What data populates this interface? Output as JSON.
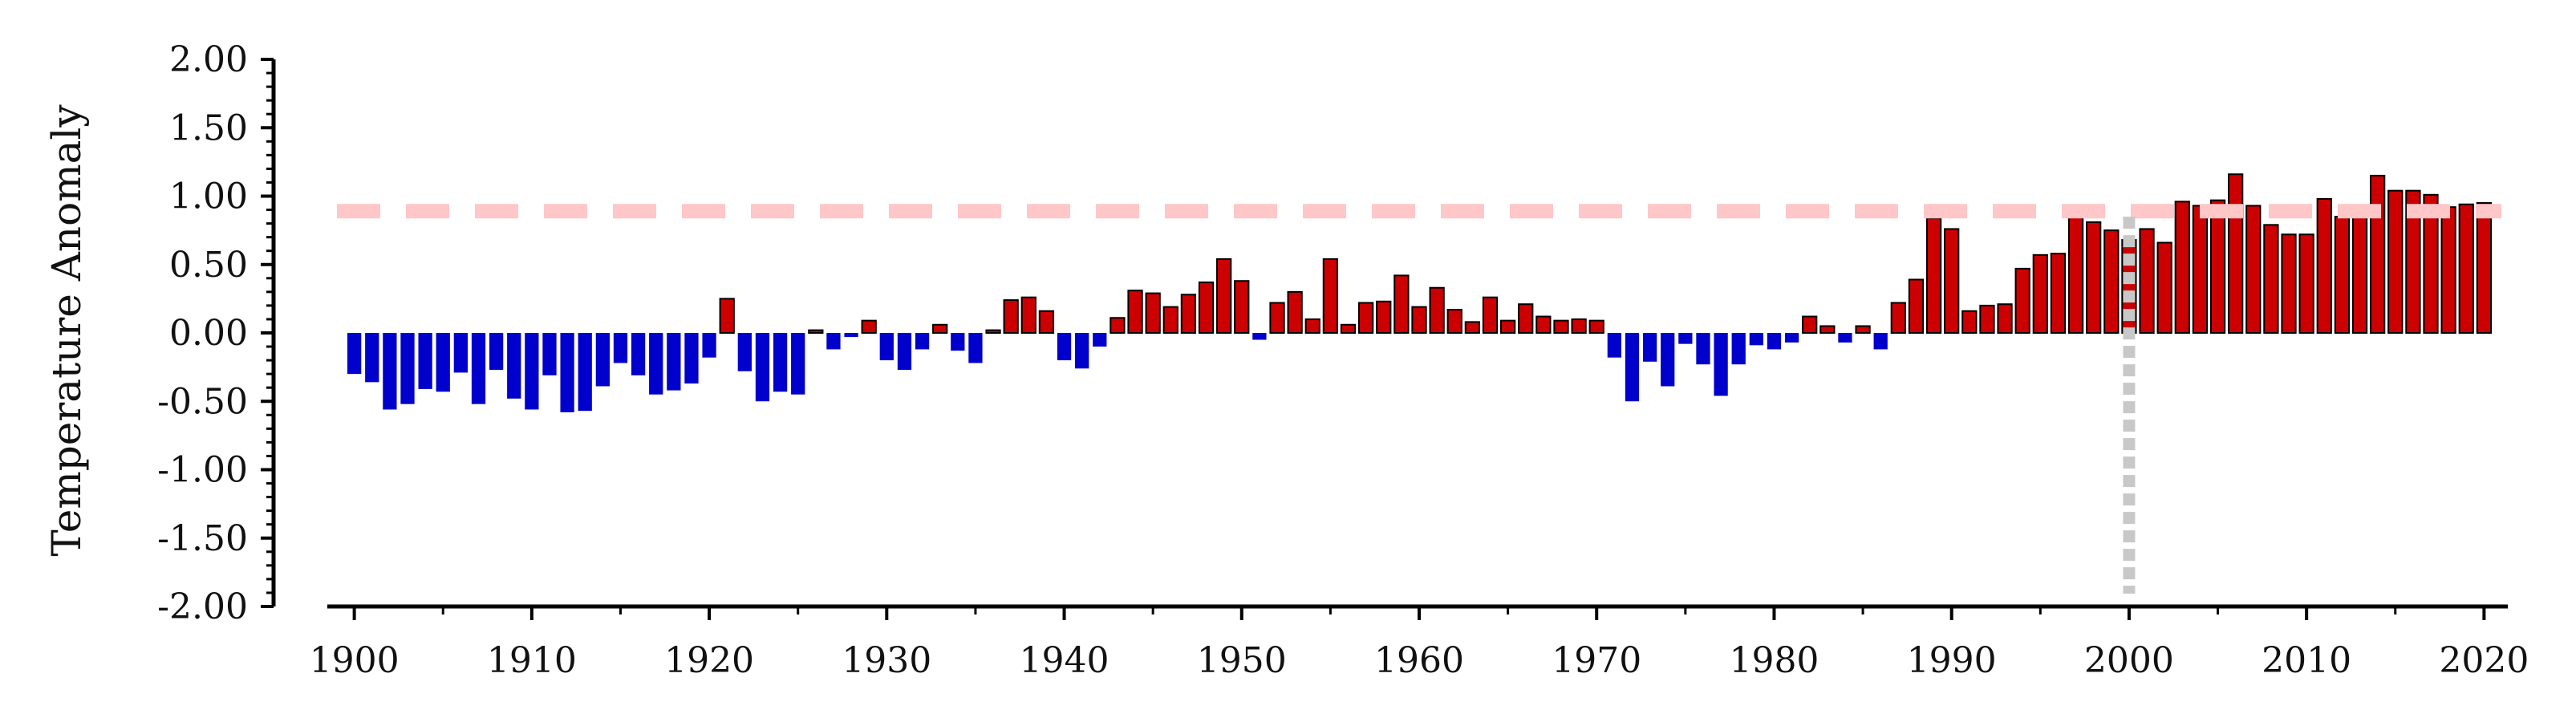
{
  "chart_data": {
    "type": "bar",
    "title": "",
    "ylabel": "Temperature Anomaly",
    "xlabel": "",
    "xlim": [
      1899,
      2021
    ],
    "ylim": [
      -2.0,
      2.0
    ],
    "grid": false,
    "x_ticks": [
      1900,
      1910,
      1920,
      1930,
      1940,
      1950,
      1960,
      1970,
      1980,
      1990,
      2000,
      2010,
      2020
    ],
    "x_tick_labels": [
      "1900",
      "1910",
      "1920",
      "1930",
      "1940",
      "1950",
      "1960",
      "1970",
      "1980",
      "1990",
      "2000",
      "2010",
      "2020"
    ],
    "y_ticks": [
      -2.0,
      -1.5,
      -1.0,
      -0.5,
      0.0,
      0.5,
      1.0,
      1.5,
      2.0
    ],
    "y_tick_labels": [
      "-2.00",
      "-1.50",
      "-1.00",
      "-0.50",
      "0.00",
      "0.50",
      "1.00",
      "1.50",
      "2.00"
    ],
    "positive_color": "#cc0000",
    "negative_color": "#0000cc",
    "bar_edge_color": "#000000",
    "reference_line": {
      "y": 0.89,
      "color": "#ffc7c7",
      "style": "dashed"
    },
    "vertical_marker": {
      "x": 2000,
      "color": "#c8c8c8",
      "style": "dotted"
    },
    "series": [
      {
        "years": [
          1900,
          1901,
          1902,
          1903,
          1904,
          1905,
          1906,
          1907,
          1908,
          1909,
          1910,
          1911,
          1912,
          1913,
          1914,
          1915,
          1916,
          1917,
          1918,
          1919,
          1920,
          1921,
          1922,
          1923,
          1924,
          1925,
          1926,
          1927,
          1928,
          1929,
          1930,
          1931,
          1932,
          1933,
          1934,
          1935,
          1936,
          1937,
          1938,
          1939,
          1940,
          1941,
          1942,
          1943,
          1944,
          1945,
          1946,
          1947,
          1948,
          1949,
          1950,
          1951,
          1952,
          1953,
          1954,
          1955,
          1956,
          1957,
          1958,
          1959,
          1960,
          1961,
          1962,
          1963,
          1964,
          1965,
          1966,
          1967,
          1968,
          1969,
          1970,
          1971,
          1972,
          1973,
          1974,
          1975,
          1976,
          1977,
          1978,
          1979,
          1980,
          1981,
          1982,
          1983,
          1984,
          1985,
          1986,
          1987,
          1988,
          1989,
          1990,
          1991,
          1992,
          1993,
          1994,
          1995,
          1996,
          1997,
          1998,
          1999,
          2000,
          2001,
          2002,
          2003,
          2004,
          2005,
          2006,
          2007,
          2008,
          2009,
          2010,
          2011,
          2012,
          2013,
          2014,
          2015,
          2016,
          2017,
          2018,
          2019,
          2020
        ],
        "values": [
          -0.3,
          -0.36,
          -0.56,
          -0.52,
          -0.41,
          -0.43,
          -0.29,
          -0.52,
          -0.27,
          -0.48,
          -0.56,
          -0.31,
          -0.58,
          -0.57,
          -0.39,
          -0.22,
          -0.31,
          -0.45,
          -0.42,
          -0.37,
          -0.18,
          0.25,
          -0.28,
          -0.5,
          -0.43,
          -0.45,
          0.02,
          -0.12,
          -0.03,
          0.09,
          -0.2,
          -0.27,
          -0.12,
          0.06,
          -0.13,
          -0.22,
          0.02,
          0.24,
          0.26,
          0.16,
          -0.2,
          -0.26,
          -0.1,
          0.11,
          0.31,
          0.29,
          0.19,
          0.28,
          0.37,
          0.54,
          0.38,
          -0.05,
          0.22,
          0.3,
          0.1,
          0.54,
          0.06,
          0.22,
          0.23,
          0.42,
          0.19,
          0.33,
          0.17,
          0.08,
          0.26,
          0.09,
          0.21,
          0.12,
          0.09,
          0.1,
          0.09,
          -0.18,
          -0.5,
          -0.21,
          -0.39,
          -0.08,
          -0.23,
          -0.46,
          -0.23,
          -0.09,
          -0.12,
          -0.07,
          0.12,
          0.05,
          -0.07,
          0.05,
          -0.12,
          0.22,
          0.39,
          0.84,
          0.76,
          0.16,
          0.2,
          0.21,
          0.47,
          0.57,
          0.58,
          0.89,
          0.81,
          0.75,
          0.68,
          0.76,
          0.66,
          0.96,
          0.93,
          0.97,
          1.16,
          0.93,
          0.79,
          0.72,
          0.72,
          0.98,
          0.85,
          0.86,
          1.15,
          1.04,
          1.04,
          1.01,
          0.92,
          0.94,
          0.95
        ]
      }
    ]
  }
}
